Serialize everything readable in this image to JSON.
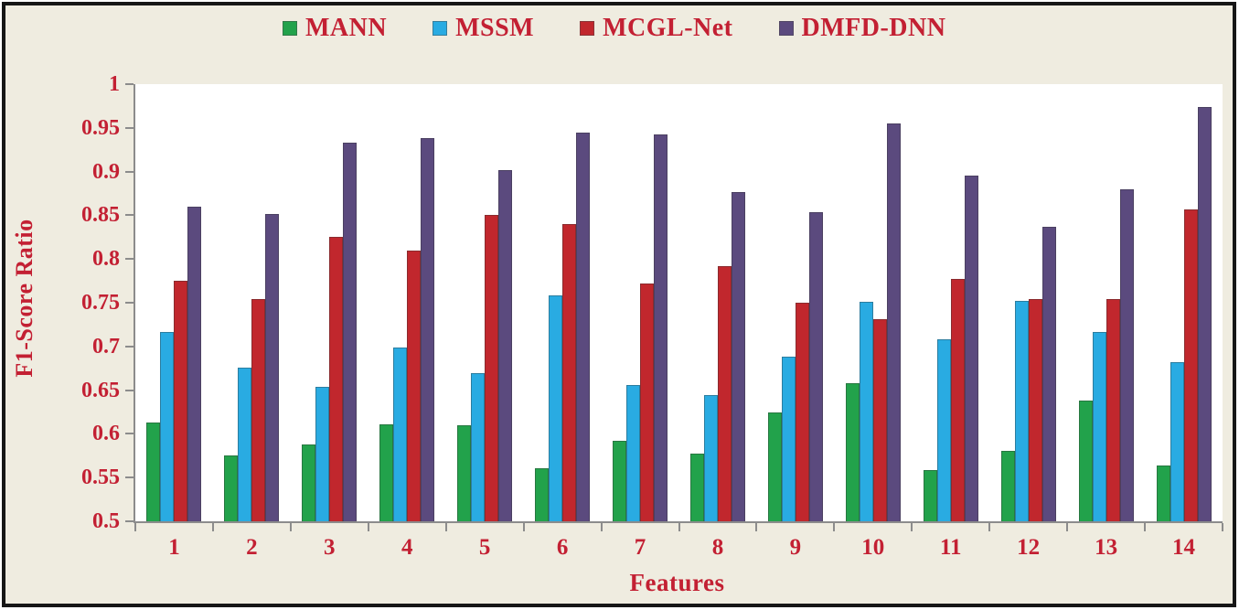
{
  "colors": {
    "background": "#efece0",
    "frame_border": "#161616",
    "plot_background": "#ffffff",
    "axis_line": "#8c8c8c",
    "text": "#c32033"
  },
  "chart_data": {
    "type": "bar",
    "title": "",
    "xlabel": "Features",
    "ylabel": "F1-Score Ratio",
    "categories": [
      "1",
      "2",
      "3",
      "4",
      "5",
      "6",
      "7",
      "8",
      "9",
      "10",
      "11",
      "12",
      "13",
      "14"
    ],
    "series": [
      {
        "name": "MANN",
        "color": "#22a24b",
        "values": [
          0.613,
          0.575,
          0.588,
          0.611,
          0.61,
          0.561,
          0.592,
          0.577,
          0.624,
          0.658,
          0.559,
          0.581,
          0.638,
          0.564
        ]
      },
      {
        "name": "MSSM",
        "color": "#29abe2",
        "values": [
          0.717,
          0.676,
          0.654,
          0.699,
          0.669,
          0.758,
          0.656,
          0.644,
          0.688,
          0.751,
          0.708,
          0.752,
          0.717,
          0.682
        ]
      },
      {
        "name": "MCGL-Net",
        "color": "#c1272d",
        "values": [
          0.775,
          0.754,
          0.825,
          0.81,
          0.85,
          0.84,
          0.772,
          0.792,
          0.75,
          0.731,
          0.777,
          0.754,
          0.754,
          0.857
        ]
      },
      {
        "name": "DMFD-DNN",
        "color": "#5b4a7e",
        "values": [
          0.86,
          0.852,
          0.933,
          0.938,
          0.902,
          0.945,
          0.942,
          0.877,
          0.854,
          0.955,
          0.895,
          0.837,
          0.88,
          0.974
        ]
      }
    ],
    "ylim": [
      0.5,
      1.0
    ],
    "ytick_step": 0.05,
    "yticks": [
      "1",
      "0.95",
      "0.9",
      "0.85",
      "0.8",
      "0.75",
      "0.7",
      "0.65",
      "0.6",
      "0.55",
      "0.5"
    ],
    "grid": false,
    "legend_position": "top"
  }
}
